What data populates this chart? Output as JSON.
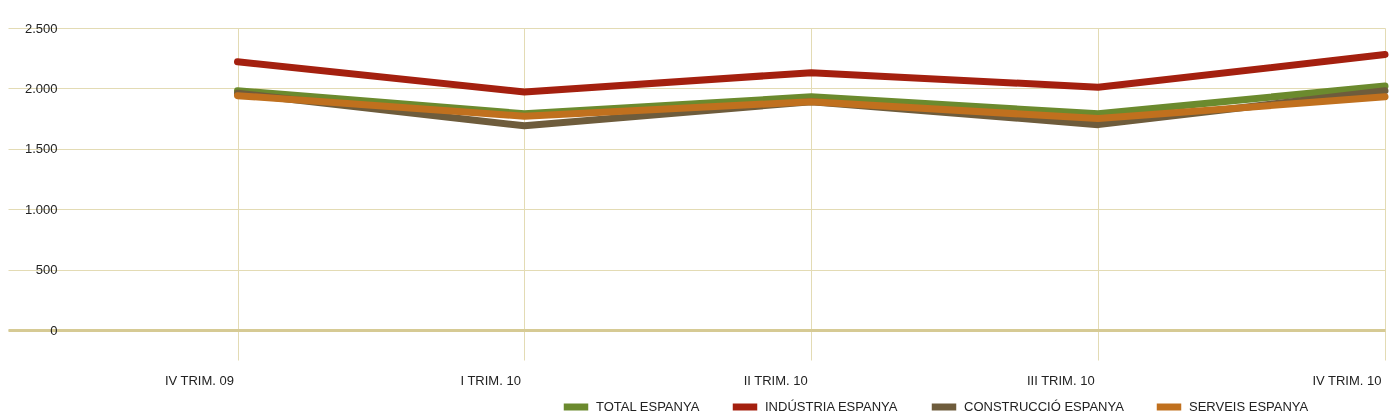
{
  "chart_data": {
    "type": "line",
    "categories": [
      "IV TRIM. 09",
      "I TRIM. 10",
      "II TRIM. 10",
      "III TRIM. 10",
      "IV TRIM. 10"
    ],
    "series": [
      {
        "name": "TOTAL ESPANYA",
        "color": "#6b8a2e",
        "values": [
          1980,
          1790,
          1930,
          1790,
          2020
        ]
      },
      {
        "name": "INDÚSTRIA ESPANYA",
        "color": "#a4200f",
        "values": [
          2220,
          1970,
          2130,
          2010,
          2280
        ]
      },
      {
        "name": "CONSTRUCCIÓ ESPANYA",
        "color": "#6e5c3c",
        "values": [
          1960,
          1690,
          1890,
          1700,
          1980
        ]
      },
      {
        "name": "SERVEIS ESPANYA",
        "color": "#c0701e",
        "values": [
          1940,
          1770,
          1890,
          1750,
          1930
        ]
      }
    ],
    "ylim": [
      0,
      2500
    ],
    "yticks": [
      0,
      {
        "value": 500,
        "label": "500"
      },
      {
        "value": 1000,
        "label": "1.000"
      },
      {
        "value": 1500,
        "label": "1.500"
      },
      {
        "value": 2000,
        "label": "2.000"
      },
      {
        "value": 2500,
        "label": "2.500"
      }
    ],
    "grid": true,
    "legend": "bottom right",
    "marker": "none",
    "line_style": "solid"
  }
}
